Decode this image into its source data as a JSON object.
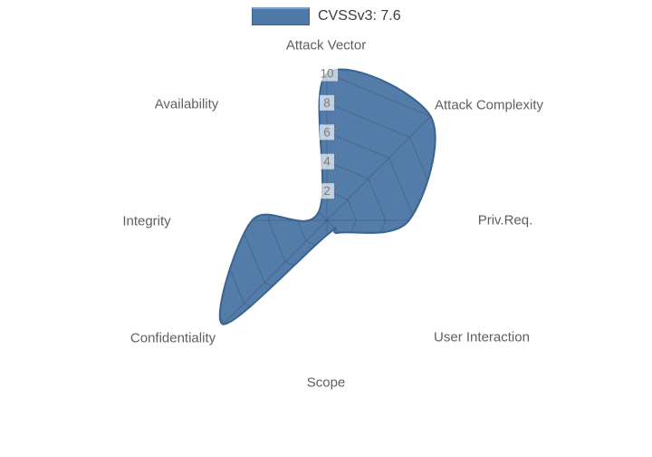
{
  "legend": {
    "label": "CVSSv3: 7.6",
    "swatch_fill": "#4E7AA9",
    "swatch_line": "#7AA2CC"
  },
  "chart_data": {
    "type": "radar",
    "title": "",
    "categories": [
      "Attack Vector",
      "Attack Complexity",
      "Priv.Req.",
      "User Interaction",
      "Scope",
      "Confidentiality",
      "Integrity",
      "Availability"
    ],
    "series": [
      {
        "name": "CVSSv3: 7.6",
        "values": [
          10,
          10,
          5.6,
          1.2,
          1.0,
          10,
          5.1,
          0.8
        ]
      }
    ],
    "radial_ticks": [
      "10",
      "8",
      "6",
      "4",
      "2"
    ],
    "radial_range": [
      0,
      10
    ],
    "grid": "on",
    "grid_shape": "linear-octagon",
    "legend_position": "top-center",
    "line_smoothing": "spline",
    "colors": {
      "fill": "#547CA9",
      "line": "#3A648F",
      "grid_line": "rgba(50,70,90,0.35)",
      "category_label_text": "#5f5f5f",
      "tick_text": "#7d7d7d",
      "tick_box_bg": "rgba(255,255,255,0.65)",
      "legend_text": "#3d3d3d",
      "background": "#ffffff"
    }
  }
}
